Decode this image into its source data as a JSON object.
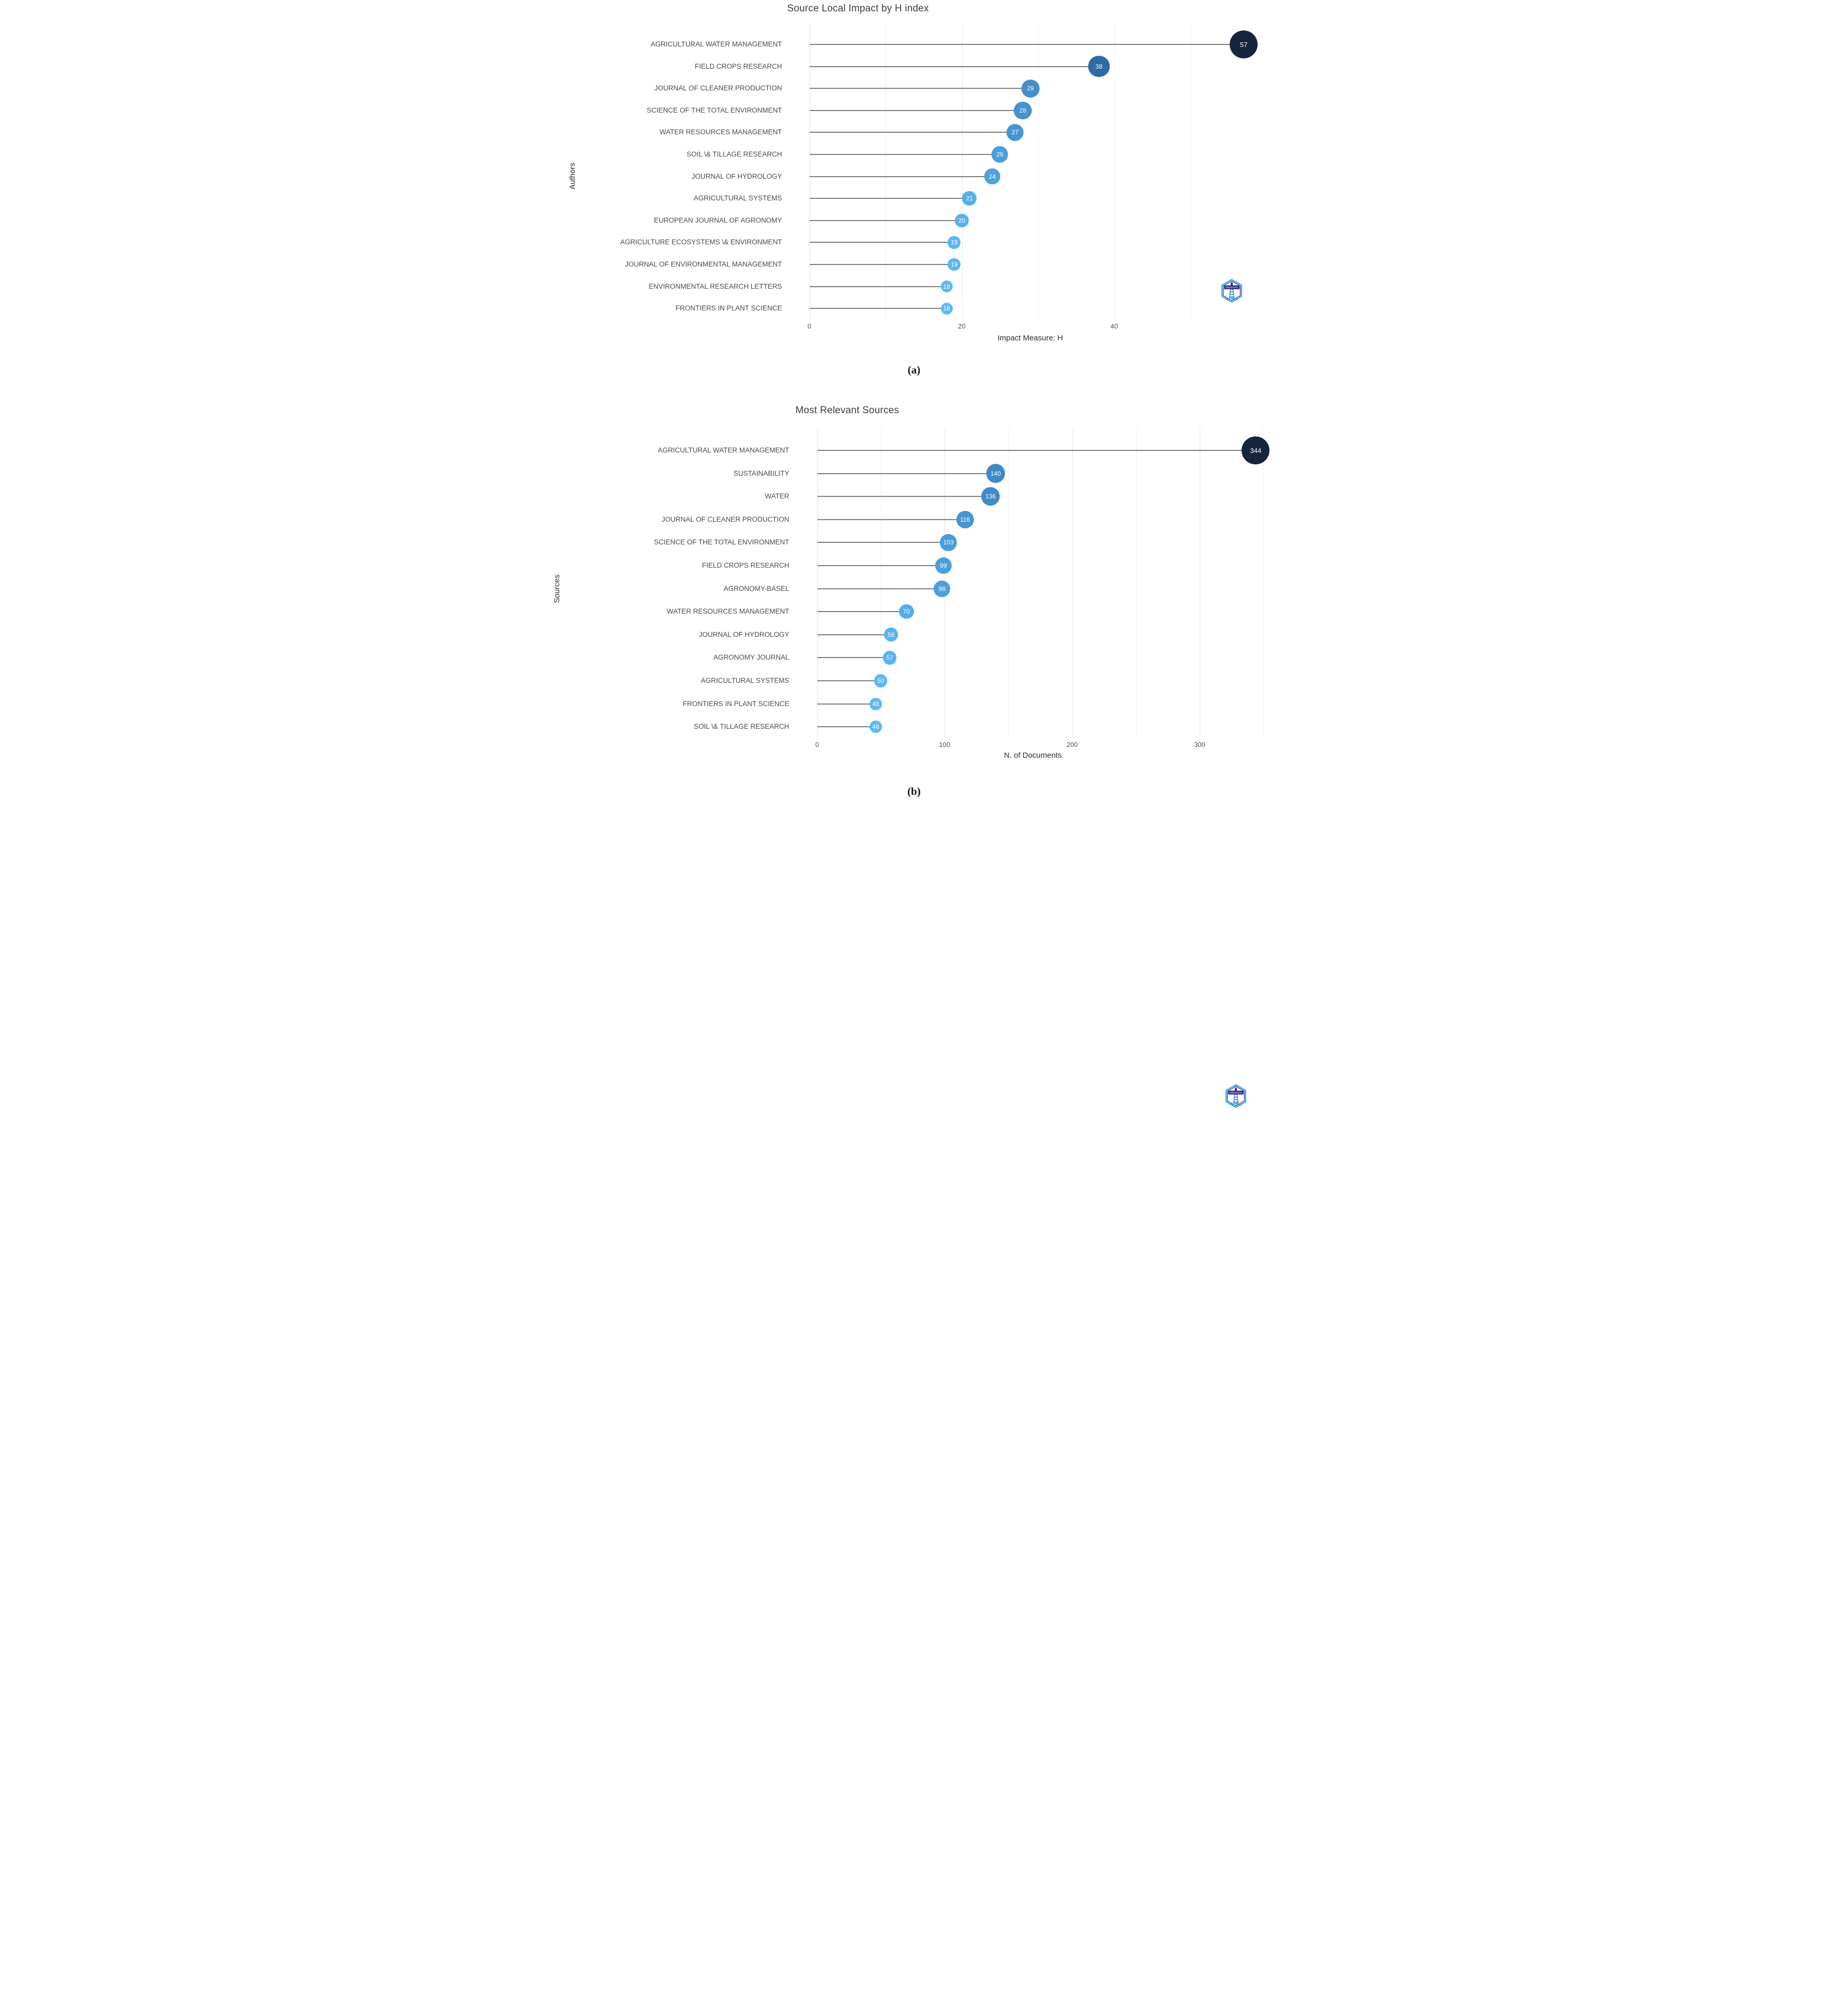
{
  "captions": {
    "a": "(a)",
    "b": "(b)"
  },
  "icons": {
    "watermark": "bibliometrix-logo-icon",
    "watermark_text": "bibliometrix"
  },
  "chart_data": [
    {
      "type": "lollipop",
      "title": "Source Local Impact by H index",
      "xlabel": "Impact Measure: H",
      "ylabel": "Authors",
      "xlim": [
        0,
        61
      ],
      "xticks": [
        0,
        20,
        40
      ],
      "xminor": [
        10,
        30,
        50
      ],
      "grid": true,
      "legend": "none",
      "categories": [
        "AGRICULTURAL WATER MANAGEMENT",
        "FIELD CROPS RESEARCH",
        "JOURNAL OF CLEANER PRODUCTION",
        "SCIENCE OF THE TOTAL ENVIRONMENT",
        "WATER RESOURCES MANAGEMENT",
        "SOIL \\& TILLAGE RESEARCH",
        "JOURNAL OF HYDROLOGY",
        "AGRICULTURAL SYSTEMS",
        "EUROPEAN JOURNAL OF AGRONOMY",
        "AGRICULTURE ECOSYSTEMS \\& ENVIRONMENT",
        "JOURNAL OF ENVIRONMENTAL MANAGEMENT",
        "ENVIRONMENTAL RESEARCH LETTERS",
        "FRONTIERS IN PLANT SCIENCE"
      ],
      "values": [
        57,
        38,
        29,
        28,
        27,
        25,
        24,
        21,
        20,
        19,
        19,
        18,
        18
      ],
      "bubble_color_stops": [
        "#5BB9F7",
        "#2F6EA8",
        "#16243C"
      ],
      "stem_color": "#7A7A7A",
      "grid_major_color": "#E2E2E2",
      "grid_minor_color": "#EFEFEF"
    },
    {
      "type": "lollipop",
      "title": "Most Relevant Sources",
      "xlabel": "N. of Documents",
      "ylabel": "Sources",
      "xlim": [
        0,
        356
      ],
      "xticks": [
        0,
        100,
        200,
        300
      ],
      "xminor": [
        50,
        150,
        250,
        350
      ],
      "grid": true,
      "legend": "none",
      "categories": [
        "AGRICULTURAL WATER MANAGEMENT",
        "SUSTAINABILITY",
        "WATER",
        "JOURNAL OF CLEANER PRODUCTION",
        "SCIENCE OF THE TOTAL ENVIRONMENT",
        "FIELD CROPS RESEARCH",
        "AGRONOMY-BASEL",
        "WATER RESOURCES MANAGEMENT",
        "JOURNAL OF HYDROLOGY",
        "AGRONOMY JOURNAL",
        "AGRICULTURAL SYSTEMS",
        "FRONTIERS IN PLANT SCIENCE",
        "SOIL \\& TILLAGE RESEARCH"
      ],
      "values": [
        344,
        140,
        136,
        116,
        103,
        99,
        98,
        70,
        58,
        57,
        50,
        46,
        46
      ],
      "bubble_color_stops": [
        "#5BB9F7",
        "#2F6EA8",
        "#16243C"
      ],
      "stem_color": "#7A7A7A",
      "grid_major_color": "#E2E2E2",
      "grid_minor_color": "#EFEFEF"
    }
  ]
}
